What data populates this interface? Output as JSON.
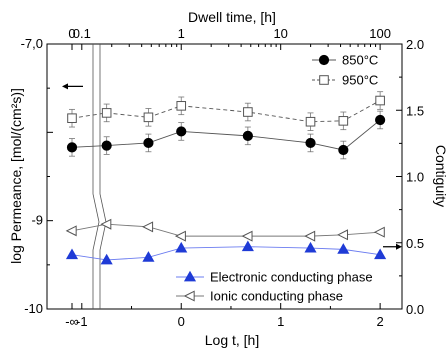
{
  "chart_data": {
    "type": "line",
    "xlabel": "Log t, [h]",
    "x2label": "Dwell time, [h]",
    "ylabel": "log Permeance, [mol/(cm²s)]",
    "y2label": "Contiguity",
    "x_ticks": [
      {
        "value": "-inf",
        "label": "-∞"
      },
      {
        "value": -1,
        "label": "-1"
      },
      {
        "value": 0,
        "label": "0"
      },
      {
        "value": 1,
        "label": "1"
      },
      {
        "value": 2,
        "label": "2"
      }
    ],
    "x2_ticks": [
      {
        "value": "-inf",
        "label": "0"
      },
      {
        "value": -1,
        "label": "0.1"
      },
      {
        "value": 0,
        "label": "1"
      },
      {
        "value": 1,
        "label": "10"
      },
      {
        "value": 2,
        "label": "100"
      }
    ],
    "ylim": [
      -10,
      -7
    ],
    "y_ticks": [
      {
        "value": -7,
        "label": "-7,0"
      },
      {
        "value": -9,
        "label": "-9"
      },
      {
        "value": -10,
        "label": "-10"
      }
    ],
    "y2lim": [
      0,
      2
    ],
    "y2_ticks": [
      {
        "value": 0,
        "label": "0.0"
      },
      {
        "value": 0.5,
        "label": "0.5"
      },
      {
        "value": 1,
        "label": "1.0"
      },
      {
        "value": 1.5,
        "label": "1.5"
      },
      {
        "value": 2,
        "label": "2.0"
      }
    ],
    "axis_break": true,
    "series": [
      {
        "name": "850°C",
        "axis": "left",
        "marker": "filled-circle",
        "line": "solid",
        "color": "#000000",
        "line_color": "#555555",
        "points": [
          {
            "x": "-inf",
            "y": -8.17,
            "err": 0.1
          },
          {
            "x": -0.75,
            "y": -8.15,
            "err": 0.1
          },
          {
            "x": -0.33,
            "y": -8.12,
            "err": 0.1
          },
          {
            "x": 0.0,
            "y": -7.99,
            "err": 0.1
          },
          {
            "x": 0.67,
            "y": -8.04,
            "err": 0.1
          },
          {
            "x": 1.3,
            "y": -8.12,
            "err": 0.1
          },
          {
            "x": 1.63,
            "y": -8.2,
            "err": 0.1
          },
          {
            "x": 2.0,
            "y": -7.86,
            "err": 0.1
          }
        ]
      },
      {
        "name": "950°C",
        "axis": "left",
        "marker": "open-square",
        "line": "dashed",
        "color": "#555555",
        "line_color": "#555555",
        "points": [
          {
            "x": "-inf",
            "y": -7.84,
            "err": 0.1
          },
          {
            "x": -0.75,
            "y": -7.78,
            "err": 0.1
          },
          {
            "x": -0.33,
            "y": -7.83,
            "err": 0.1
          },
          {
            "x": 0.0,
            "y": -7.7,
            "err": 0.1
          },
          {
            "x": 0.67,
            "y": -7.77,
            "err": 0.1
          },
          {
            "x": 1.3,
            "y": -7.88,
            "err": 0.1
          },
          {
            "x": 1.63,
            "y": -7.87,
            "err": 0.1
          },
          {
            "x": 2.0,
            "y": -7.64,
            "err": 0.1
          }
        ]
      },
      {
        "name": "Electronic conducting phase",
        "axis": "right",
        "marker": "filled-triangle-up",
        "line": "solid",
        "color": "#1f3bd6",
        "line_color": "#6b7cf0",
        "points": [
          {
            "x": "-inf",
            "y": 0.41
          },
          {
            "x": -0.75,
            "y": 0.37
          },
          {
            "x": -0.33,
            "y": 0.39
          },
          {
            "x": 0.0,
            "y": 0.46
          },
          {
            "x": 0.67,
            "y": 0.47
          },
          {
            "x": 1.3,
            "y": 0.46
          },
          {
            "x": 1.63,
            "y": 0.45
          },
          {
            "x": 2.0,
            "y": 0.41
          }
        ]
      },
      {
        "name": "Ionic conducting phase",
        "axis": "right",
        "marker": "open-triangle-left",
        "line": "solid",
        "color": "#555555",
        "line_color": "#777777",
        "points": [
          {
            "x": "-inf",
            "y": 0.59
          },
          {
            "x": -0.75,
            "y": 0.64
          },
          {
            "x": -0.33,
            "y": 0.62
          },
          {
            "x": 0.0,
            "y": 0.55
          },
          {
            "x": 0.67,
            "y": 0.55
          },
          {
            "x": 1.3,
            "y": 0.55
          },
          {
            "x": 1.63,
            "y": 0.56
          },
          {
            "x": 2.0,
            "y": 0.58
          }
        ]
      }
    ],
    "annotations": [
      {
        "type": "arrow",
        "direction": "left",
        "axis": "left",
        "y": -7.48
      },
      {
        "type": "arrow",
        "direction": "right",
        "axis": "right",
        "y": 0.47
      }
    ],
    "legends": [
      {
        "placement": "top-right",
        "series": [
          "850°C",
          "950°C"
        ]
      },
      {
        "placement": "bottom-right",
        "series": [
          "Electronic conducting phase",
          "Ionic conducting phase"
        ]
      }
    ]
  }
}
